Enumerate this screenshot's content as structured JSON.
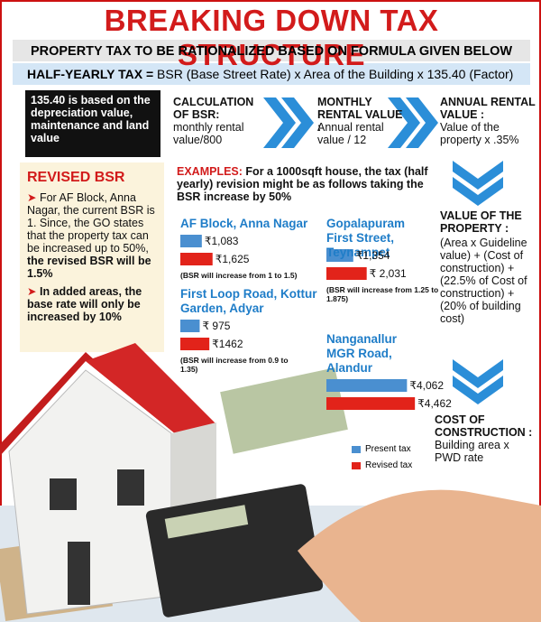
{
  "header": {
    "title": "BREAKING DOWN TAX STRUCTURE",
    "subtitle": "PROPERTY TAX TO BE RATIONALIZED BASED ON FORMULA GIVEN BELOW"
  },
  "formula": {
    "label": "HALF-YEARLY TAX =",
    "text": "BSR (Base Street Rate) x Area of the Building x 135.40 (Factor)"
  },
  "factor_note": "135.40 is based on the depreciation value, maintenance and land value",
  "steps": [
    {
      "title": "CALCULATION OF BSR:",
      "text": "monthly rental value/800"
    },
    {
      "title": "MONTHLY RENTAL VALUE :",
      "text": "Annual rental value / 12"
    },
    {
      "title": "ANNUAL RENTAL VALUE :",
      "text": "Value of the property x .35%"
    },
    {
      "title": "VALUE OF THE PROPERTY :",
      "text": "(Area x Guideline value) + (Cost of construction) + (22.5% of Cost of construction) + (20% of building cost)"
    },
    {
      "title": "COST OF CONSTRUCTION :",
      "text": "Building area x PWD rate"
    }
  ],
  "revised_bsr": {
    "title": "REVISED BSR",
    "points": [
      {
        "text": "For AF Block, Anna Nagar, the current BSR is 1. Since, the GO states that the property tax can be increased up to 50%,",
        "bold": "the revised BSR will be 1.5%"
      },
      {
        "bold": "In added areas, the base rate will only be increased by 10%"
      }
    ]
  },
  "examples": {
    "label": "EXAMPLES:",
    "text": "For a 1000sqft house, the tax (half yearly) revision might be as follows taking the BSR increase by 50%",
    "items": [
      {
        "place": "AF Block, Anna Nagar",
        "present": {
          "value": 1083,
          "label": "₹1,083"
        },
        "revised": {
          "value": 1625,
          "label": "₹1,625"
        },
        "note": "(BSR will increase from 1 to 1.5)"
      },
      {
        "place": "First Loop Road, Kottur Garden, Adyar",
        "present": {
          "value": 975,
          "label": "₹ 975"
        },
        "revised": {
          "value": 1462,
          "label": "₹1462"
        },
        "note": "(BSR will increase from 0.9 to 1.35)"
      },
      {
        "place": "Gopalapuram First Street, Teynampet",
        "present": {
          "value": 1354,
          "label": "₹1,354"
        },
        "revised": {
          "value": 2031,
          "label": "₹ 2,031"
        },
        "note": "(BSR will increase from 1.25 to 1.875)"
      },
      {
        "place": "Nanganallur MGR Road, Alandur",
        "present": {
          "value": 4062,
          "label": "₹4,062"
        },
        "revised": {
          "value": 4462,
          "label": "₹4,462"
        }
      }
    ]
  },
  "legend": {
    "present": "Present tax",
    "revised": "Revised tax",
    "present_color": "#4a8fd0",
    "revised_color": "#e2231a"
  }
}
